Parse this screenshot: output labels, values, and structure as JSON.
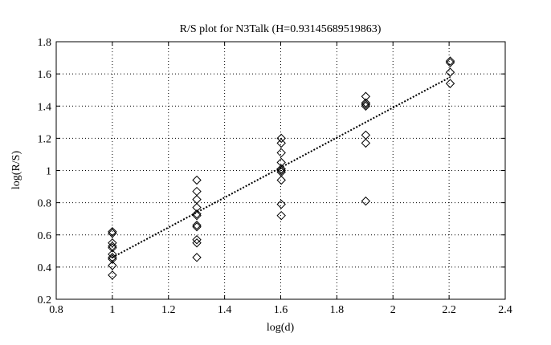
{
  "chart_data": {
    "type": "scatter",
    "title": "R/S plot for N3Talk (H=0.93145689519863)",
    "xlabel": "log(d)",
    "ylabel": "log(R/S)",
    "xlim": [
      0.8,
      2.4
    ],
    "ylim": [
      0.2,
      1.8
    ],
    "xticks": [
      "0.8",
      "1",
      "1.2",
      "1.4",
      "1.6",
      "1.8",
      "2",
      "2.2",
      "2.4"
    ],
    "yticks": [
      "0.2",
      "0.4",
      "0.6",
      "0.8",
      "1",
      "1.2",
      "1.4",
      "1.6",
      "1.8"
    ],
    "grid": true,
    "marker": "diamond",
    "line_style": "dotted",
    "series": [
      {
        "points": [
          [
            1.0,
            0.62
          ],
          [
            1.0,
            0.61
          ],
          [
            1.0,
            0.55
          ],
          [
            1.0,
            0.53
          ],
          [
            1.0,
            0.52
          ],
          [
            1.0,
            0.48
          ],
          [
            1.0,
            0.46
          ],
          [
            1.0,
            0.45
          ],
          [
            1.0,
            0.41
          ],
          [
            1.0,
            0.35
          ],
          [
            1.301,
            0.94
          ],
          [
            1.301,
            0.87
          ],
          [
            1.301,
            0.82
          ],
          [
            1.301,
            0.77
          ],
          [
            1.301,
            0.73
          ],
          [
            1.301,
            0.72
          ],
          [
            1.301,
            0.66
          ],
          [
            1.301,
            0.65
          ],
          [
            1.301,
            0.57
          ],
          [
            1.301,
            0.55
          ],
          [
            1.301,
            0.46
          ],
          [
            1.602,
            1.2
          ],
          [
            1.602,
            1.17
          ],
          [
            1.602,
            1.11
          ],
          [
            1.602,
            1.05
          ],
          [
            1.602,
            1.01
          ],
          [
            1.602,
            1.0
          ],
          [
            1.602,
            0.99
          ],
          [
            1.602,
            0.94
          ],
          [
            1.602,
            0.79
          ],
          [
            1.602,
            0.72
          ],
          [
            1.903,
            1.46
          ],
          [
            1.903,
            1.42
          ],
          [
            1.903,
            1.41
          ],
          [
            1.903,
            1.4
          ],
          [
            1.903,
            1.22
          ],
          [
            1.903,
            1.17
          ],
          [
            1.903,
            0.81
          ],
          [
            2.204,
            1.68
          ],
          [
            2.204,
            1.67
          ],
          [
            2.204,
            1.61
          ],
          [
            2.204,
            1.54
          ]
        ]
      }
    ],
    "fit_line": {
      "x": [
        1.0,
        2.204
      ],
      "y": [
        0.46,
        1.58
      ]
    }
  }
}
